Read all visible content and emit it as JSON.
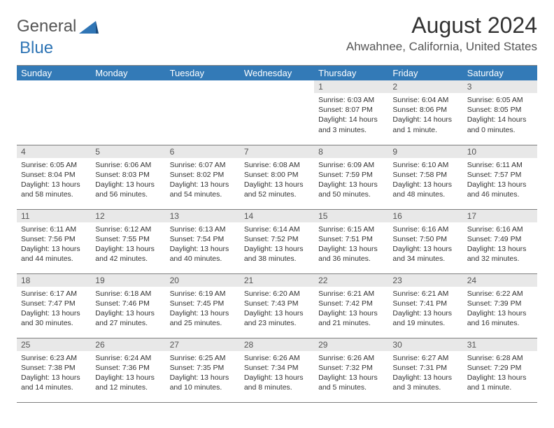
{
  "logo": {
    "general": "General",
    "blue": "Blue"
  },
  "title": "August 2024",
  "location": "Ahwahnee, California, United States",
  "weekdays": [
    "Sunday",
    "Monday",
    "Tuesday",
    "Wednesday",
    "Thursday",
    "Friday",
    "Saturday"
  ],
  "colors": {
    "header_bg": "#337ab7",
    "header_text": "#ffffff",
    "daynum_bg": "#e8e8e8",
    "border": "#7f7f7f",
    "logo_accent": "#2f75b5",
    "body_text": "#333333"
  },
  "weeks": [
    [
      null,
      null,
      null,
      null,
      {
        "n": "1",
        "sunrise": "Sunrise: 6:03 AM",
        "sunset": "Sunset: 8:07 PM",
        "daylight1": "Daylight: 14 hours",
        "daylight2": "and 3 minutes."
      },
      {
        "n": "2",
        "sunrise": "Sunrise: 6:04 AM",
        "sunset": "Sunset: 8:06 PM",
        "daylight1": "Daylight: 14 hours",
        "daylight2": "and 1 minute."
      },
      {
        "n": "3",
        "sunrise": "Sunrise: 6:05 AM",
        "sunset": "Sunset: 8:05 PM",
        "daylight1": "Daylight: 14 hours",
        "daylight2": "and 0 minutes."
      }
    ],
    [
      {
        "n": "4",
        "sunrise": "Sunrise: 6:05 AM",
        "sunset": "Sunset: 8:04 PM",
        "daylight1": "Daylight: 13 hours",
        "daylight2": "and 58 minutes."
      },
      {
        "n": "5",
        "sunrise": "Sunrise: 6:06 AM",
        "sunset": "Sunset: 8:03 PM",
        "daylight1": "Daylight: 13 hours",
        "daylight2": "and 56 minutes."
      },
      {
        "n": "6",
        "sunrise": "Sunrise: 6:07 AM",
        "sunset": "Sunset: 8:02 PM",
        "daylight1": "Daylight: 13 hours",
        "daylight2": "and 54 minutes."
      },
      {
        "n": "7",
        "sunrise": "Sunrise: 6:08 AM",
        "sunset": "Sunset: 8:00 PM",
        "daylight1": "Daylight: 13 hours",
        "daylight2": "and 52 minutes."
      },
      {
        "n": "8",
        "sunrise": "Sunrise: 6:09 AM",
        "sunset": "Sunset: 7:59 PM",
        "daylight1": "Daylight: 13 hours",
        "daylight2": "and 50 minutes."
      },
      {
        "n": "9",
        "sunrise": "Sunrise: 6:10 AM",
        "sunset": "Sunset: 7:58 PM",
        "daylight1": "Daylight: 13 hours",
        "daylight2": "and 48 minutes."
      },
      {
        "n": "10",
        "sunrise": "Sunrise: 6:11 AM",
        "sunset": "Sunset: 7:57 PM",
        "daylight1": "Daylight: 13 hours",
        "daylight2": "and 46 minutes."
      }
    ],
    [
      {
        "n": "11",
        "sunrise": "Sunrise: 6:11 AM",
        "sunset": "Sunset: 7:56 PM",
        "daylight1": "Daylight: 13 hours",
        "daylight2": "and 44 minutes."
      },
      {
        "n": "12",
        "sunrise": "Sunrise: 6:12 AM",
        "sunset": "Sunset: 7:55 PM",
        "daylight1": "Daylight: 13 hours",
        "daylight2": "and 42 minutes."
      },
      {
        "n": "13",
        "sunrise": "Sunrise: 6:13 AM",
        "sunset": "Sunset: 7:54 PM",
        "daylight1": "Daylight: 13 hours",
        "daylight2": "and 40 minutes."
      },
      {
        "n": "14",
        "sunrise": "Sunrise: 6:14 AM",
        "sunset": "Sunset: 7:52 PM",
        "daylight1": "Daylight: 13 hours",
        "daylight2": "and 38 minutes."
      },
      {
        "n": "15",
        "sunrise": "Sunrise: 6:15 AM",
        "sunset": "Sunset: 7:51 PM",
        "daylight1": "Daylight: 13 hours",
        "daylight2": "and 36 minutes."
      },
      {
        "n": "16",
        "sunrise": "Sunrise: 6:16 AM",
        "sunset": "Sunset: 7:50 PM",
        "daylight1": "Daylight: 13 hours",
        "daylight2": "and 34 minutes."
      },
      {
        "n": "17",
        "sunrise": "Sunrise: 6:16 AM",
        "sunset": "Sunset: 7:49 PM",
        "daylight1": "Daylight: 13 hours",
        "daylight2": "and 32 minutes."
      }
    ],
    [
      {
        "n": "18",
        "sunrise": "Sunrise: 6:17 AM",
        "sunset": "Sunset: 7:47 PM",
        "daylight1": "Daylight: 13 hours",
        "daylight2": "and 30 minutes."
      },
      {
        "n": "19",
        "sunrise": "Sunrise: 6:18 AM",
        "sunset": "Sunset: 7:46 PM",
        "daylight1": "Daylight: 13 hours",
        "daylight2": "and 27 minutes."
      },
      {
        "n": "20",
        "sunrise": "Sunrise: 6:19 AM",
        "sunset": "Sunset: 7:45 PM",
        "daylight1": "Daylight: 13 hours",
        "daylight2": "and 25 minutes."
      },
      {
        "n": "21",
        "sunrise": "Sunrise: 6:20 AM",
        "sunset": "Sunset: 7:43 PM",
        "daylight1": "Daylight: 13 hours",
        "daylight2": "and 23 minutes."
      },
      {
        "n": "22",
        "sunrise": "Sunrise: 6:21 AM",
        "sunset": "Sunset: 7:42 PM",
        "daylight1": "Daylight: 13 hours",
        "daylight2": "and 21 minutes."
      },
      {
        "n": "23",
        "sunrise": "Sunrise: 6:21 AM",
        "sunset": "Sunset: 7:41 PM",
        "daylight1": "Daylight: 13 hours",
        "daylight2": "and 19 minutes."
      },
      {
        "n": "24",
        "sunrise": "Sunrise: 6:22 AM",
        "sunset": "Sunset: 7:39 PM",
        "daylight1": "Daylight: 13 hours",
        "daylight2": "and 16 minutes."
      }
    ],
    [
      {
        "n": "25",
        "sunrise": "Sunrise: 6:23 AM",
        "sunset": "Sunset: 7:38 PM",
        "daylight1": "Daylight: 13 hours",
        "daylight2": "and 14 minutes."
      },
      {
        "n": "26",
        "sunrise": "Sunrise: 6:24 AM",
        "sunset": "Sunset: 7:36 PM",
        "daylight1": "Daylight: 13 hours",
        "daylight2": "and 12 minutes."
      },
      {
        "n": "27",
        "sunrise": "Sunrise: 6:25 AM",
        "sunset": "Sunset: 7:35 PM",
        "daylight1": "Daylight: 13 hours",
        "daylight2": "and 10 minutes."
      },
      {
        "n": "28",
        "sunrise": "Sunrise: 6:26 AM",
        "sunset": "Sunset: 7:34 PM",
        "daylight1": "Daylight: 13 hours",
        "daylight2": "and 8 minutes."
      },
      {
        "n": "29",
        "sunrise": "Sunrise: 6:26 AM",
        "sunset": "Sunset: 7:32 PM",
        "daylight1": "Daylight: 13 hours",
        "daylight2": "and 5 minutes."
      },
      {
        "n": "30",
        "sunrise": "Sunrise: 6:27 AM",
        "sunset": "Sunset: 7:31 PM",
        "daylight1": "Daylight: 13 hours",
        "daylight2": "and 3 minutes."
      },
      {
        "n": "31",
        "sunrise": "Sunrise: 6:28 AM",
        "sunset": "Sunset: 7:29 PM",
        "daylight1": "Daylight: 13 hours",
        "daylight2": "and 1 minute."
      }
    ]
  ]
}
